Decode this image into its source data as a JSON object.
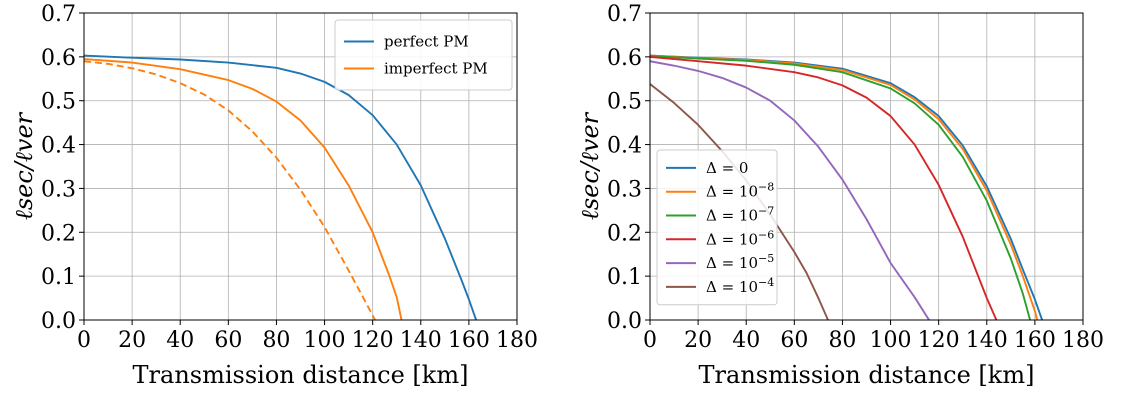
{
  "chart_data": [
    {
      "type": "line",
      "xlabel": "Transmission distance [km]",
      "ylabel": "ℓsec/ℓver",
      "xlim": [
        0,
        180
      ],
      "ylim": [
        0.0,
        0.7
      ],
      "xticks": [
        0,
        20,
        40,
        60,
        80,
        100,
        120,
        140,
        160,
        180
      ],
      "yticks": [
        0.0,
        0.1,
        0.2,
        0.3,
        0.4,
        0.5,
        0.6,
        0.7
      ],
      "xtick_labels": [
        "0",
        "20",
        "40",
        "60",
        "80",
        "100",
        "120",
        "140",
        "160",
        "180"
      ],
      "ytick_labels": [
        "0.0",
        "0.1",
        "0.2",
        "0.3",
        "0.4",
        "0.5",
        "0.6",
        "0.7"
      ],
      "grid": true,
      "legend_position": "top-right",
      "series": [
        {
          "name": "perfect PM",
          "color": "#1f77b4",
          "style": "solid",
          "points": [
            [
              0,
              0.603
            ],
            [
              20,
              0.598
            ],
            [
              40,
              0.594
            ],
            [
              60,
              0.587
            ],
            [
              80,
              0.575
            ],
            [
              90,
              0.562
            ],
            [
              100,
              0.543
            ],
            [
              110,
              0.513
            ],
            [
              120,
              0.467
            ],
            [
              130,
              0.4
            ],
            [
              140,
              0.307
            ],
            [
              150,
              0.186
            ],
            [
              157,
              0.09
            ],
            [
              160,
              0.047
            ],
            [
              163,
              0.0
            ]
          ]
        },
        {
          "name": "imperfect PM",
          "color": "#ff7f0e",
          "style": "solid",
          "points": [
            [
              0,
              0.595
            ],
            [
              20,
              0.587
            ],
            [
              40,
              0.572
            ],
            [
              60,
              0.547
            ],
            [
              70,
              0.527
            ],
            [
              80,
              0.498
            ],
            [
              90,
              0.455
            ],
            [
              100,
              0.393
            ],
            [
              110,
              0.307
            ],
            [
              120,
              0.2
            ],
            [
              127,
              0.1
            ],
            [
              130,
              0.052
            ],
            [
              132,
              0.0
            ]
          ]
        },
        {
          "name": "",
          "color": "#ff7f0e",
          "style": "dashed",
          "points": [
            [
              0,
              0.59
            ],
            [
              10,
              0.584
            ],
            [
              20,
              0.574
            ],
            [
              30,
              0.56
            ],
            [
              40,
              0.54
            ],
            [
              50,
              0.514
            ],
            [
              60,
              0.478
            ],
            [
              70,
              0.43
            ],
            [
              80,
              0.37
            ],
            [
              90,
              0.297
            ],
            [
              100,
              0.212
            ],
            [
              110,
              0.113
            ],
            [
              115,
              0.062
            ],
            [
              121,
              0.0
            ]
          ]
        }
      ]
    },
    {
      "type": "line",
      "xlabel": "Transmission distance [km]",
      "ylabel": "ℓsec/ℓver",
      "xlim": [
        0,
        180
      ],
      "ylim": [
        0.0,
        0.7
      ],
      "xticks": [
        0,
        20,
        40,
        60,
        80,
        100,
        120,
        140,
        160,
        180
      ],
      "yticks": [
        0.0,
        0.1,
        0.2,
        0.3,
        0.4,
        0.5,
        0.6,
        0.7
      ],
      "xtick_labels": [
        "0",
        "20",
        "40",
        "60",
        "80",
        "100",
        "120",
        "140",
        "160",
        "180"
      ],
      "ytick_labels": [
        "0.0",
        "0.1",
        "0.2",
        "0.3",
        "0.4",
        "0.5",
        "0.6",
        "0.7"
      ],
      "grid": true,
      "legend_position": "lower-left",
      "series": [
        {
          "name": "Δ = 0",
          "color": "#1f77b4",
          "points": [
            [
              0,
              0.603
            ],
            [
              20,
              0.598
            ],
            [
              40,
              0.594
            ],
            [
              60,
              0.587
            ],
            [
              80,
              0.573
            ],
            [
              100,
              0.54
            ],
            [
              110,
              0.508
            ],
            [
              120,
              0.465
            ],
            [
              130,
              0.398
            ],
            [
              140,
              0.305
            ],
            [
              150,
              0.185
            ],
            [
              155,
              0.115
            ],
            [
              160,
              0.047
            ],
            [
              163,
              0.0
            ]
          ]
        },
        {
          "name": "Δ = 10⁻⁸",
          "color": "#ff7f0e",
          "points": [
            [
              0,
              0.603
            ],
            [
              20,
              0.597
            ],
            [
              40,
              0.593
            ],
            [
              60,
              0.585
            ],
            [
              80,
              0.57
            ],
            [
              100,
              0.536
            ],
            [
              110,
              0.503
            ],
            [
              120,
              0.458
            ],
            [
              130,
              0.39
            ],
            [
              140,
              0.295
            ],
            [
              150,
              0.172
            ],
            [
              155,
              0.1
            ],
            [
              160,
              0.02
            ],
            [
              161,
              0.0
            ]
          ]
        },
        {
          "name": "Δ = 10⁻⁷",
          "color": "#2ca02c",
          "points": [
            [
              0,
              0.602
            ],
            [
              20,
              0.596
            ],
            [
              40,
              0.591
            ],
            [
              60,
              0.582
            ],
            [
              80,
              0.565
            ],
            [
              100,
              0.528
            ],
            [
              110,
              0.494
            ],
            [
              120,
              0.445
            ],
            [
              130,
              0.372
            ],
            [
              140,
              0.272
            ],
            [
              150,
              0.14
            ],
            [
              155,
              0.06
            ],
            [
              158,
              0.0
            ]
          ]
        },
        {
          "name": "Δ = 10⁻⁶",
          "color": "#d62728",
          "points": [
            [
              0,
              0.6
            ],
            [
              20,
              0.59
            ],
            [
              40,
              0.58
            ],
            [
              60,
              0.565
            ],
            [
              70,
              0.553
            ],
            [
              80,
              0.535
            ],
            [
              90,
              0.507
            ],
            [
              100,
              0.465
            ],
            [
              110,
              0.4
            ],
            [
              120,
              0.308
            ],
            [
              130,
              0.19
            ],
            [
              135,
              0.12
            ],
            [
              140,
              0.05
            ],
            [
              144,
              0.0
            ]
          ]
        },
        {
          "name": "Δ = 10⁻⁵",
          "color": "#9467bd",
          "points": [
            [
              0,
              0.59
            ],
            [
              10,
              0.58
            ],
            [
              20,
              0.568
            ],
            [
              30,
              0.552
            ],
            [
              40,
              0.53
            ],
            [
              50,
              0.5
            ],
            [
              60,
              0.455
            ],
            [
              70,
              0.395
            ],
            [
              80,
              0.32
            ],
            [
              90,
              0.23
            ],
            [
              100,
              0.13
            ],
            [
              110,
              0.052
            ],
            [
              116,
              0.0
            ]
          ]
        },
        {
          "name": "Δ = 10⁻⁴",
          "color": "#8c564b",
          "points": [
            [
              0,
              0.538
            ],
            [
              10,
              0.495
            ],
            [
              20,
              0.445
            ],
            [
              30,
              0.385
            ],
            [
              40,
              0.318
            ],
            [
              50,
              0.24
            ],
            [
              60,
              0.155
            ],
            [
              65,
              0.108
            ],
            [
              70,
              0.05
            ],
            [
              74,
              0.0
            ]
          ]
        }
      ]
    }
  ]
}
